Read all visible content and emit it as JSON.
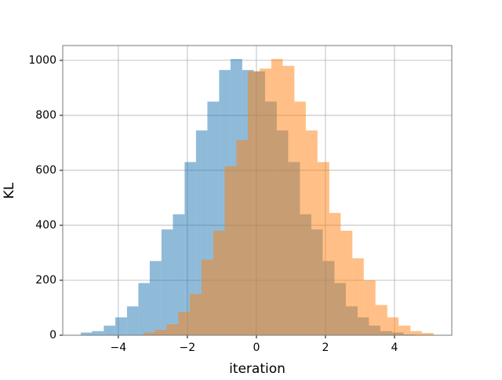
{
  "chart_data": {
    "type": "histogram",
    "xlabel": "iteration",
    "ylabel": "KL",
    "xlim": [
      -5.61,
      5.66
    ],
    "ylim": [
      0,
      1054
    ],
    "xticks": [
      {
        "value": -4,
        "label": "−4"
      },
      {
        "value": -2,
        "label": "−2"
      },
      0,
      2,
      4
    ],
    "yticks": [
      0,
      200,
      400,
      600,
      800,
      1000
    ],
    "grid": true,
    "opacity": 0.5,
    "series": [
      {
        "color": "#1f77b4",
        "bins": [
          -5.09,
          -4.76,
          -4.42,
          -4.09,
          -3.75,
          -3.42,
          -3.09,
          -2.75,
          -2.42,
          -2.08,
          -1.75,
          -1.42,
          -1.08,
          -0.75,
          -0.41,
          -0.08,
          0.25,
          0.59,
          0.92,
          1.26,
          1.59,
          1.92,
          2.26,
          2.59,
          2.93,
          3.26,
          3.59,
          3.93,
          4.26,
          4.6,
          4.93
        ],
        "values": [
          10,
          15,
          35,
          65,
          105,
          190,
          270,
          385,
          440,
          630,
          745,
          850,
          965,
          1005,
          965,
          960,
          850,
          745,
          630,
          440,
          385,
          270,
          190,
          105,
          65,
          35,
          15,
          10,
          3,
          1
        ]
      },
      {
        "color": "#ff7f0e",
        "bins": [
          -3.27,
          -2.93,
          -2.6,
          -2.26,
          -1.93,
          -1.59,
          -1.25,
          -0.92,
          -0.58,
          -0.25,
          0.09,
          0.43,
          0.76,
          1.1,
          1.43,
          1.77,
          2.11,
          2.44,
          2.78,
          3.11,
          3.45,
          3.79,
          4.12,
          4.46,
          4.79,
          5.13
        ],
        "values": [
          10,
          20,
          40,
          85,
          150,
          275,
          380,
          615,
          710,
          960,
          970,
          1005,
          980,
          850,
          745,
          630,
          445,
          380,
          280,
          200,
          110,
          65,
          35,
          15,
          8
        ]
      }
    ]
  }
}
